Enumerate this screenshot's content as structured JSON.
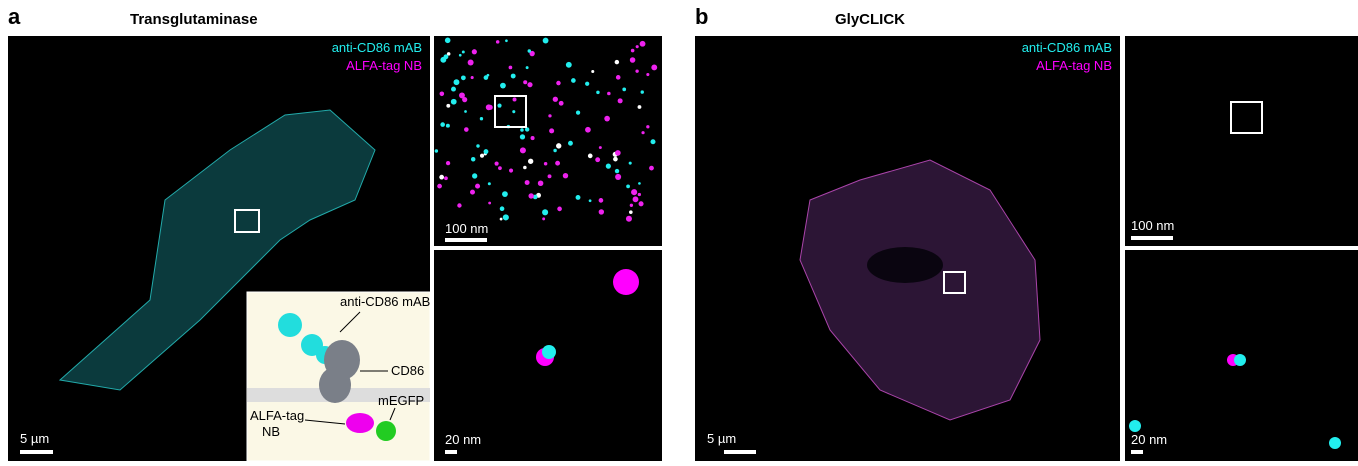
{
  "panels": [
    {
      "letter": "a",
      "title": "Transglutaminase",
      "legend": [
        "anti-CD86 mAB",
        "ALFA-tag NB"
      ],
      "scalebars": {
        "main": "5 µm",
        "zoom1": "100 nm",
        "zoom2": "20 nm"
      },
      "inset": {
        "antibody": "anti-CD86 mAB",
        "receptor": "CD86",
        "nanobody": [
          "ALFA-tag",
          "NB"
        ],
        "fluor": "mEGFP"
      }
    },
    {
      "letter": "b",
      "title": "GlyCLICK",
      "legend": [
        "anti-CD86 mAB",
        "ALFA-tag NB"
      ],
      "scalebars": {
        "main": "5 µm",
        "zoom1": "100 nm",
        "zoom2": "20 nm"
      }
    }
  ]
}
